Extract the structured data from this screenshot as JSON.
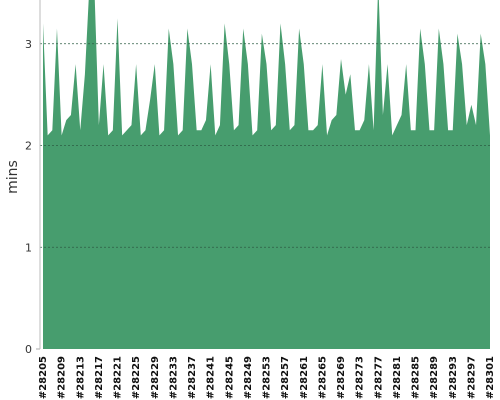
{
  "chart_data": {
    "type": "area",
    "y_label": "mins",
    "color": "#479d6e",
    "categories": [
      "#28205",
      null,
      null,
      null,
      "#28209",
      null,
      null,
      null,
      "#28213",
      null,
      null,
      null,
      "#28217",
      null,
      null,
      null,
      "#28221",
      null,
      null,
      null,
      "#28225",
      null,
      null,
      null,
      "#28229",
      null,
      null,
      null,
      "#28233",
      null,
      null,
      null,
      "#28237",
      null,
      null,
      null,
      "#28241",
      null,
      null,
      null,
      "#28245",
      null,
      null,
      null,
      "#28249",
      null,
      null,
      null,
      "#28253",
      null,
      null,
      null,
      "#28257",
      null,
      null,
      null,
      "#28261",
      null,
      null,
      null,
      "#28265",
      null,
      null,
      null,
      "#28269",
      null,
      null,
      null,
      "#28273",
      null,
      null,
      null,
      "#28277",
      null,
      null,
      null,
      "#28281",
      null,
      null,
      null,
      "#28285",
      null,
      null,
      null,
      "#28289",
      null,
      null,
      null,
      "#28293",
      null,
      null,
      null,
      "#28297",
      null,
      null,
      null,
      "#28301"
    ],
    "values": [
      3.2,
      2.1,
      2.15,
      3.15,
      2.1,
      2.25,
      2.3,
      2.8,
      2.15,
      2.7,
      3.6,
      3.6,
      2.2,
      2.8,
      2.1,
      2.15,
      3.25,
      2.1,
      2.15,
      2.2,
      2.8,
      2.1,
      2.15,
      2.45,
      2.8,
      2.1,
      2.15,
      3.15,
      2.8,
      2.1,
      2.15,
      3.15,
      2.8,
      2.15,
      2.15,
      2.25,
      2.8,
      2.1,
      2.2,
      3.2,
      2.8,
      2.15,
      2.2,
      3.15,
      2.8,
      2.1,
      2.15,
      3.1,
      2.8,
      2.15,
      2.2,
      3.2,
      2.8,
      2.15,
      2.2,
      3.15,
      2.8,
      2.15,
      2.15,
      2.2,
      2.8,
      2.1,
      2.25,
      2.3,
      2.85,
      2.5,
      2.7,
      2.15,
      2.15,
      2.25,
      2.8,
      2.15,
      3.6,
      2.3,
      2.8,
      2.1,
      2.2,
      2.3,
      2.8,
      2.15,
      2.15,
      3.15,
      2.8,
      2.15,
      2.15,
      3.15,
      2.8,
      2.15,
      2.15,
      3.1,
      2.8,
      2.2,
      2.4,
      2.2,
      3.1,
      2.8,
      2.1
    ],
    "ylim": [
      0,
      3.43
    ],
    "yticks": [
      0,
      1,
      2,
      3
    ],
    "grid": true
  }
}
